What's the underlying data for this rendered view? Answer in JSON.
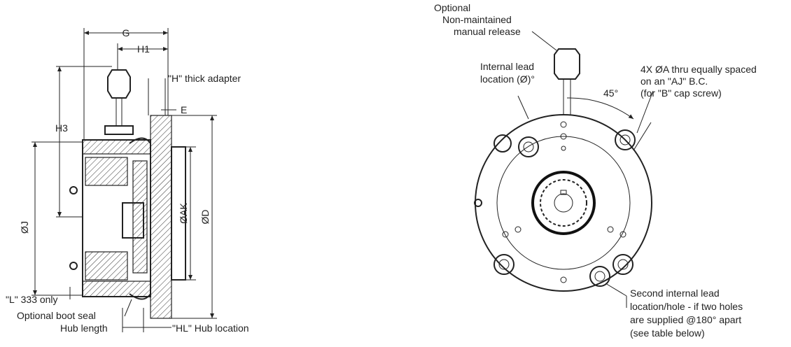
{
  "side_view": {
    "g": "G",
    "h1": "H1",
    "adapter": "\"H\" thick adapter",
    "e": "E",
    "h3": "H3",
    "j": "ØJ",
    "ak": "ØAK",
    "d": "ØD",
    "l_note": "\"L\" 333 only",
    "boot_seal": "Optional boot seal",
    "hub_length": "Hub length",
    "hub_location": "\"HL\" Hub location"
  },
  "front_view": {
    "release_note": [
      "Optional",
      "Non-maintained",
      "manual release"
    ],
    "lead_location": [
      "Internal lead",
      "location (Ø)°"
    ],
    "angle": "45°",
    "hole_note": [
      "4X ØA thru equally spaced",
      "on an \"AJ\" B.C.",
      "(for \"B\" cap screw)"
    ],
    "second_lead_note": [
      "Second internal lead",
      "location/hole - if two holes",
      "are supplied @180° apart",
      "(see table below)"
    ]
  }
}
